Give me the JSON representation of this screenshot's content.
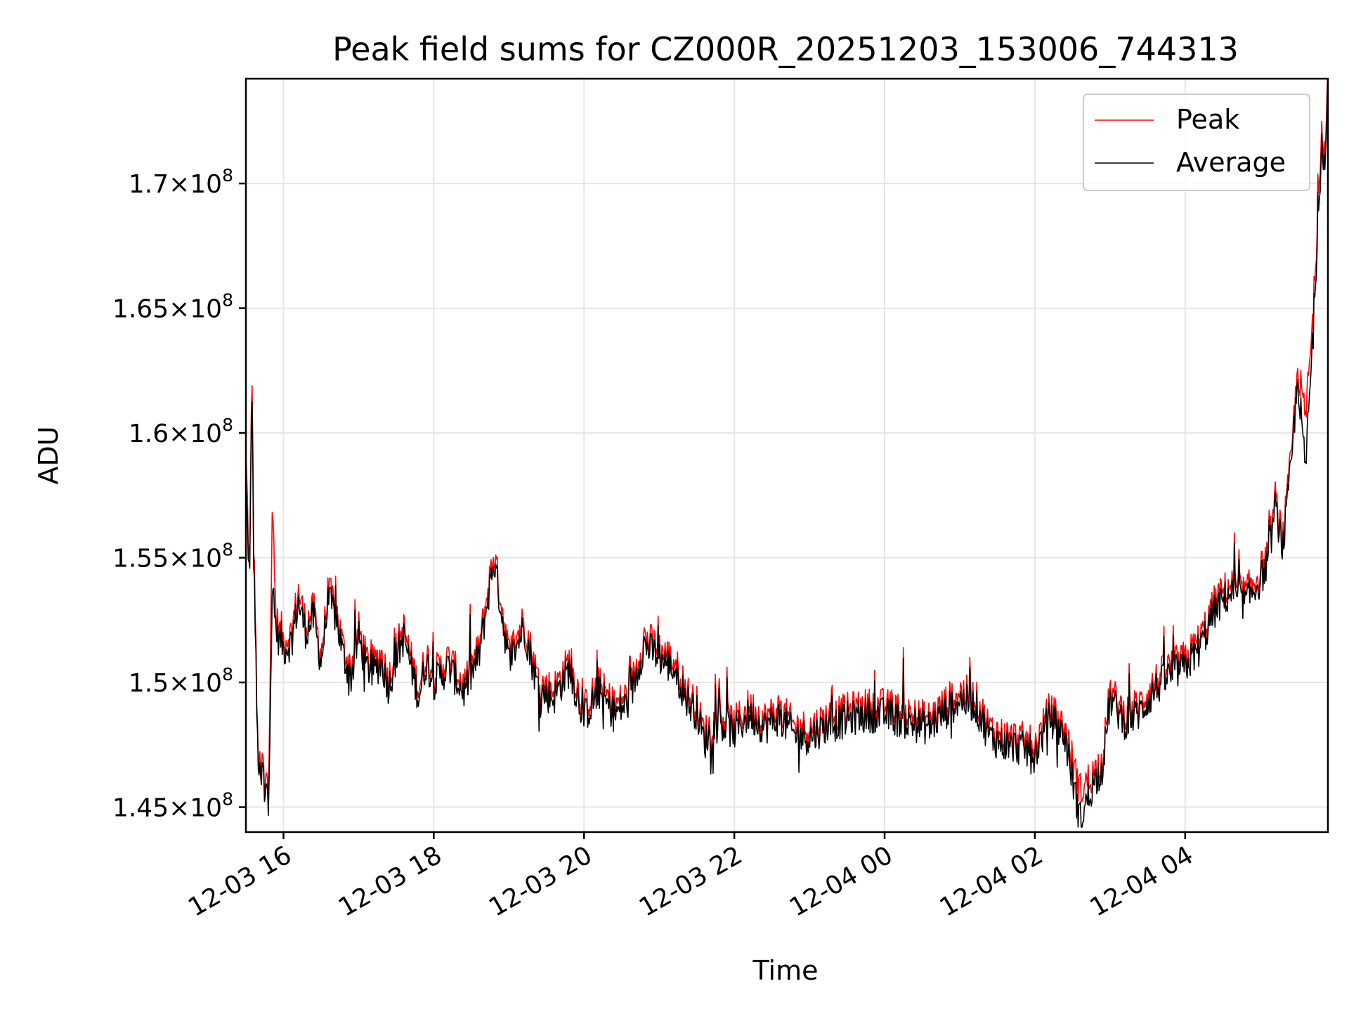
{
  "chart_data": {
    "type": "line",
    "title": "Peak field sums for CZ000R_20251203_153006_744313",
    "xlabel": "Time",
    "ylabel": "ADU",
    "grid": true,
    "legend_position": "top-right",
    "xlim_hours": [
      -0.5,
      13.9
    ],
    "ylim": [
      144000000,
      174200000
    ],
    "x_ticks": [
      {
        "hours": 0,
        "label": "12-03 16"
      },
      {
        "hours": 2,
        "label": "12-03 18"
      },
      {
        "hours": 4,
        "label": "12-03 20"
      },
      {
        "hours": 6,
        "label": "12-03 22"
      },
      {
        "hours": 8,
        "label": "12-04 00"
      },
      {
        "hours": 10,
        "label": "12-04 02"
      },
      {
        "hours": 12,
        "label": "12-04 04"
      }
    ],
    "y_ticks": [
      {
        "value": 145000000,
        "mantissa": "1.45",
        "base": "10",
        "exponent": "8"
      },
      {
        "value": 150000000,
        "mantissa": "1.5",
        "base": "10",
        "exponent": "8"
      },
      {
        "value": 155000000,
        "mantissa": "1.55",
        "base": "10",
        "exponent": "8"
      },
      {
        "value": 160000000,
        "mantissa": "1.6",
        "base": "10",
        "exponent": "8"
      },
      {
        "value": 165000000,
        "mantissa": "1.65",
        "base": "10",
        "exponent": "8"
      },
      {
        "value": 170000000,
        "mantissa": "1.7",
        "base": "10",
        "exponent": "8"
      }
    ],
    "x_hours": [
      -0.5,
      -0.45,
      -0.42,
      -0.4,
      -0.38,
      -0.35,
      -0.32,
      -0.3,
      -0.27,
      -0.25,
      -0.22,
      -0.2,
      -0.15,
      -0.1,
      -0.05,
      -0.03,
      0.0,
      0.1,
      0.2,
      0.3,
      0.4,
      0.5,
      0.6,
      0.7,
      0.8,
      0.9,
      1.0,
      1.1,
      1.2,
      1.3,
      1.4,
      1.5,
      1.6,
      1.7,
      1.8,
      1.9,
      2.0,
      2.2,
      2.4,
      2.6,
      2.8,
      3.0,
      3.2,
      3.4,
      3.6,
      3.8,
      4.0,
      4.2,
      4.4,
      4.6,
      4.8,
      5.0,
      5.2,
      5.4,
      5.5,
      5.6,
      5.8,
      6.0,
      6.2,
      6.4,
      6.6,
      6.8,
      7.0,
      7.2,
      7.4,
      7.6,
      7.8,
      8.0,
      8.2,
      8.4,
      8.6,
      8.8,
      9.0,
      9.2,
      9.4,
      9.6,
      9.8,
      10.0,
      10.2,
      10.4,
      10.6,
      10.8,
      10.9,
      11.0,
      11.2,
      11.4,
      11.6,
      11.8,
      12.0,
      12.2,
      12.4,
      12.6,
      12.8,
      13.0,
      13.1,
      13.2,
      13.3,
      13.4,
      13.5,
      13.6,
      13.7,
      13.8,
      13.82,
      13.86,
      13.9
    ],
    "series": [
      {
        "name": "Peak",
        "color": "#ff0000",
        "values": [
          159000000,
          154000000,
          163000000,
          156000000,
          153500000,
          148000000,
          146500000,
          146000000,
          147000000,
          145000000,
          146500000,
          145500000,
          156700000,
          152500000,
          151800000,
          152000000,
          151500000,
          151800000,
          153500000,
          152200000,
          152800000,
          151000000,
          153500000,
          152800000,
          151200000,
          150400000,
          152000000,
          150800000,
          150600000,
          151000000,
          150000000,
          151200000,
          152000000,
          150800000,
          149600000,
          151000000,
          150200000,
          150800000,
          149800000,
          151200000,
          155100000,
          151000000,
          152400000,
          149800000,
          149600000,
          150700000,
          148800000,
          149800000,
          148900000,
          149400000,
          151700000,
          151200000,
          150700000,
          149300000,
          149000000,
          147800000,
          148600000,
          148200000,
          148900000,
          148400000,
          148800000,
          148100000,
          148000000,
          148400000,
          148600000,
          148800000,
          148900000,
          148900000,
          148700000,
          148500000,
          148400000,
          149000000,
          149500000,
          149300000,
          148000000,
          147700000,
          147600000,
          147300000,
          148800000,
          148000000,
          145500000,
          146300000,
          146800000,
          149500000,
          148600000,
          149000000,
          149900000,
          150500000,
          150800000,
          151600000,
          153100000,
          153800000,
          153400000,
          154300000,
          155000000,
          157200000,
          155600000,
          158500000,
          162500000,
          160400000,
          164400000,
          171200000,
          172300000,
          170800000,
          174200000
        ]
      },
      {
        "name": "Average",
        "color": "#000000",
        "values": [
          158000000,
          153800000,
          162500000,
          155500000,
          153000000,
          147800000,
          146200000,
          145800000,
          146800000,
          144800000,
          146200000,
          145200000,
          153500000,
          152200000,
          151600000,
          151800000,
          151300000,
          151600000,
          153200000,
          152000000,
          152600000,
          150800000,
          153300000,
          152600000,
          151000000,
          150200000,
          151800000,
          150600000,
          150400000,
          150800000,
          149800000,
          151000000,
          151800000,
          150600000,
          149400000,
          150800000,
          150000000,
          150600000,
          149600000,
          151000000,
          154900000,
          150800000,
          152200000,
          149600000,
          149400000,
          150500000,
          148600000,
          149600000,
          148700000,
          149200000,
          151500000,
          151000000,
          150500000,
          149100000,
          148800000,
          147600000,
          148400000,
          148000000,
          148700000,
          148200000,
          148600000,
          147900000,
          147800000,
          148200000,
          148400000,
          148600000,
          148700000,
          148700000,
          148500000,
          148300000,
          148200000,
          148800000,
          149300000,
          149100000,
          147800000,
          147500000,
          147400000,
          147100000,
          148600000,
          147800000,
          144500000,
          146100000,
          146600000,
          149300000,
          148400000,
          148800000,
          149700000,
          150300000,
          150600000,
          151400000,
          152900000,
          153600000,
          153200000,
          154100000,
          154800000,
          157000000,
          155400000,
          158300000,
          162200000,
          158500000,
          163900000,
          170600000,
          172000000,
          170400000,
          174000000
        ]
      }
    ]
  }
}
